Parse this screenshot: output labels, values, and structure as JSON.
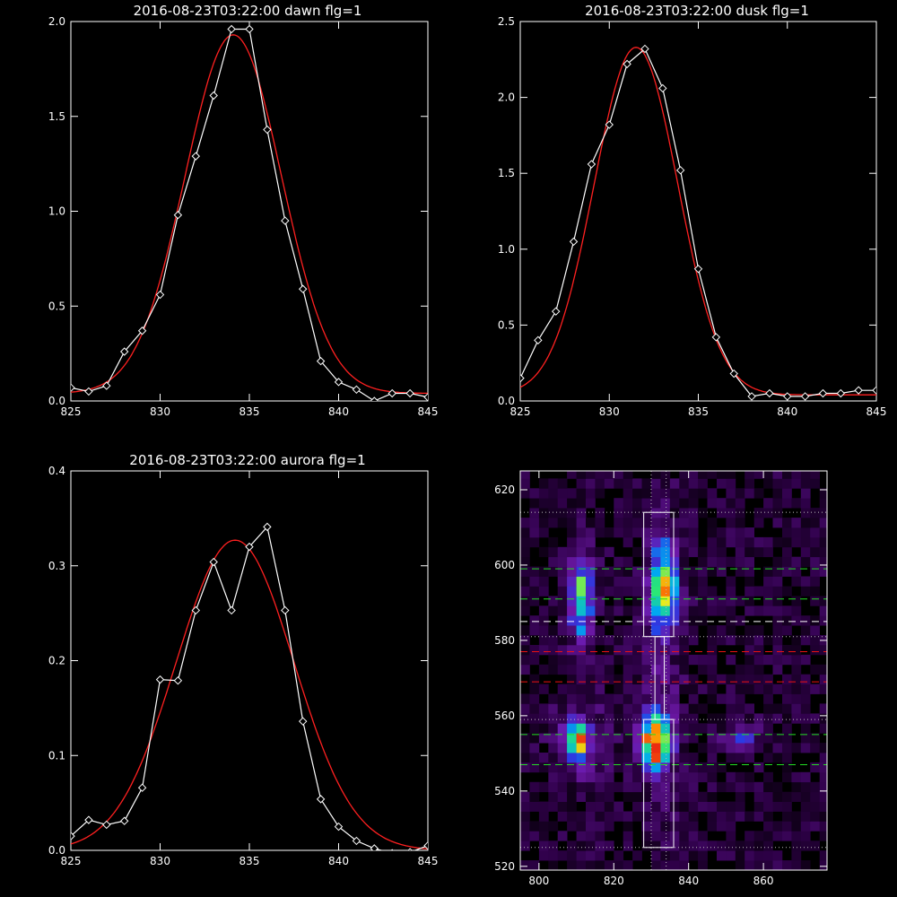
{
  "colors": {
    "background": "#000000",
    "axes": "#ffffff",
    "data_line": "#ffffff",
    "fit_line": "#ff2020",
    "green_dash": "#22dd22",
    "red_dash": "#ee1111",
    "white_dash": "#ffffff",
    "dotted": "#bbbbbb"
  },
  "chart_data": [
    {
      "type": "line",
      "title": "2016-08-23T03:22:00 dawn flg=1",
      "xlim": [
        825,
        845
      ],
      "ylim": [
        0,
        2.0
      ],
      "xticks": [
        "825",
        "830",
        "835",
        "840",
        "845"
      ],
      "yticks": [
        "0.0",
        "0.5",
        "1.0",
        "1.5",
        "2.0"
      ],
      "series": [
        {
          "role": "data",
          "markers": "diamond",
          "x": [
            825,
            826,
            827,
            828,
            829,
            830,
            831,
            832,
            833,
            834,
            835,
            836,
            837,
            838,
            839,
            840,
            841,
            842,
            843,
            844,
            845
          ],
          "y": [
            0.07,
            0.05,
            0.08,
            0.26,
            0.37,
            0.56,
            0.98,
            1.29,
            1.61,
            1.96,
            1.96,
            1.43,
            0.95,
            0.59,
            0.21,
            0.1,
            0.06,
            0.0,
            0.04,
            0.04,
            0.02
          ]
        },
        {
          "role": "fit",
          "gaussian": {
            "amp": 1.89,
            "center": 834.1,
            "sigma": 2.7,
            "offset": 0.04
          }
        }
      ]
    },
    {
      "type": "line",
      "title": "2016-08-23T03:22:00 dusk flg=1",
      "xlim": [
        825,
        845
      ],
      "ylim": [
        0,
        2.5
      ],
      "xticks": [
        "825",
        "830",
        "835",
        "840",
        "845"
      ],
      "yticks": [
        "0.0",
        "0.5",
        "1.0",
        "1.5",
        "2.0",
        "2.5"
      ],
      "series": [
        {
          "role": "data",
          "markers": "diamond",
          "x": [
            825,
            826,
            827,
            828,
            829,
            830,
            831,
            832,
            833,
            834,
            835,
            836,
            837,
            838,
            839,
            840,
            841,
            842,
            843,
            844,
            845
          ],
          "y": [
            0.15,
            0.4,
            0.59,
            1.05,
            1.56,
            1.82,
            2.22,
            2.32,
            2.06,
            1.52,
            0.87,
            0.42,
            0.18,
            0.03,
            0.05,
            0.03,
            0.03,
            0.05,
            0.05,
            0.07,
            0.07
          ]
        },
        {
          "role": "fit",
          "gaussian": {
            "amp": 2.29,
            "center": 831.5,
            "sigma": 2.35,
            "offset": 0.04
          }
        }
      ]
    },
    {
      "type": "line",
      "title": "2016-08-23T03:22:00 aurora flg=1",
      "xlim": [
        825,
        845
      ],
      "ylim": [
        0,
        0.4
      ],
      "xticks": [
        "825",
        "830",
        "835",
        "840",
        "845"
      ],
      "yticks": [
        "0.0",
        "0.1",
        "0.2",
        "0.3",
        "0.4"
      ],
      "series": [
        {
          "role": "data",
          "markers": "diamond",
          "x": [
            825,
            826,
            827,
            828,
            829,
            830,
            831,
            832,
            833,
            834,
            835,
            836,
            837,
            838,
            839,
            840,
            841,
            842,
            843,
            844,
            845
          ],
          "y": [
            0.015,
            0.032,
            0.027,
            0.031,
            0.066,
            0.18,
            0.179,
            0.253,
            0.304,
            0.253,
            0.32,
            0.341,
            0.253,
            0.136,
            0.054,
            0.025,
            0.01,
            0.002,
            -0.003,
            -0.002,
            0.005
          ]
        },
        {
          "role": "fit",
          "gaussian": {
            "amp": 0.327,
            "center": 834.2,
            "sigma": 3.3,
            "offset": 0.0
          }
        }
      ]
    },
    {
      "type": "heatmap",
      "title": "",
      "xlim": [
        795,
        877
      ],
      "ylim": [
        519,
        625
      ],
      "xticks": [
        "800",
        "820",
        "840",
        "860"
      ],
      "yticks": [
        "520",
        "540",
        "560",
        "580",
        "600",
        "620"
      ],
      "blobs": [
        {
          "x": 810,
          "y": 590,
          "sx": 2.2,
          "sy": 8,
          "peak": 0.55
        },
        {
          "x": 809,
          "y": 552,
          "sx": 2.0,
          "sy": 3.5,
          "peak": 0.75
        },
        {
          "x": 832,
          "y": 593,
          "sx": 2.3,
          "sy": 8,
          "peak": 0.75
        },
        {
          "x": 830,
          "y": 552,
          "sx": 2.6,
          "sy": 5,
          "peak": 1.0
        },
        {
          "x": 853,
          "y": 553,
          "sx": 3,
          "sy": 3,
          "peak": 0.3
        },
        {
          "x": 810,
          "y": 552,
          "sx": 6,
          "sy": 9,
          "peak": 0.12
        },
        {
          "x": 832,
          "y": 570,
          "sx": 4,
          "sy": 30,
          "peak": 0.1
        }
      ],
      "boxes": [
        {
          "x0": 828,
          "x1": 836,
          "y0": 581,
          "y1": 614
        },
        {
          "x0": 828,
          "x1": 836,
          "y0": 525,
          "y1": 559
        },
        {
          "x0": 831,
          "x1": 833.5,
          "y0": 559,
          "y1": 581
        }
      ],
      "hlines": [
        {
          "y": 614,
          "style": "dotted",
          "color": "dotted"
        },
        {
          "y": 599,
          "style": "dashed",
          "color": "green_dash"
        },
        {
          "y": 591,
          "style": "dashed",
          "color": "green_dash"
        },
        {
          "y": 585,
          "style": "dashed",
          "color": "white_dash"
        },
        {
          "y": 581,
          "style": "dotted",
          "color": "dotted"
        },
        {
          "y": 577,
          "style": "dashed",
          "color": "red_dash"
        },
        {
          "y": 569,
          "style": "dashed",
          "color": "red_dash"
        },
        {
          "y": 559,
          "style": "dotted",
          "color": "dotted"
        },
        {
          "y": 555,
          "style": "dashed",
          "color": "green_dash"
        },
        {
          "y": 547,
          "style": "dashed",
          "color": "green_dash"
        },
        {
          "y": 525,
          "style": "dotted",
          "color": "dotted"
        }
      ],
      "vlines": [
        {
          "x": 830,
          "style": "dotted",
          "color": "dotted"
        },
        {
          "x": 834,
          "style": "dotted",
          "color": "dotted"
        }
      ]
    }
  ]
}
